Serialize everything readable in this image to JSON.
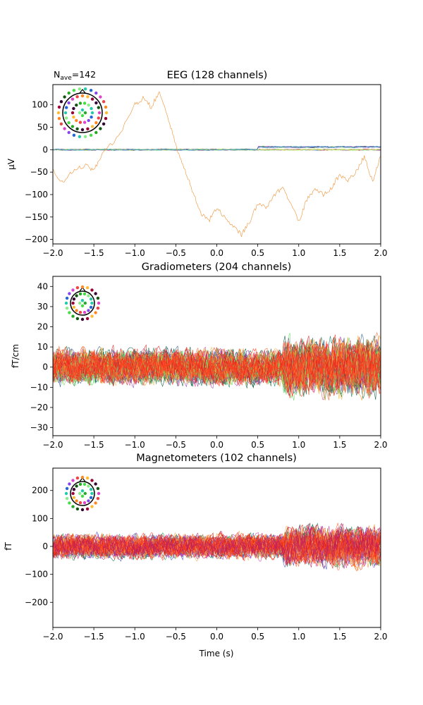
{
  "nave": {
    "prefix": "N",
    "sub": "ave",
    "suffix": "=142"
  },
  "chart_data": [
    {
      "type": "line",
      "title": "EEG (128 channels)",
      "ylabel": "µV",
      "xlabel": "",
      "xlim": [
        -2.0,
        2.0
      ],
      "ylim": [
        -210,
        145
      ],
      "xticks": [
        -2.0,
        -1.5,
        -1.0,
        -0.5,
        0.0,
        0.5,
        1.0,
        1.5,
        2.0
      ],
      "xtick_labels": [
        "−2.0",
        "−1.5",
        "−1.0",
        "−0.5",
        "0.0",
        "0.5",
        "1.0",
        "1.5",
        "2.0"
      ],
      "yticks": [
        100,
        50,
        0,
        -50,
        -100,
        -150,
        -200
      ],
      "ytick_labels": [
        "100",
        "50",
        "0",
        "−50",
        "−100",
        "−150",
        "−200"
      ],
      "noise_amplitude": 3,
      "colors": [
        "#9be564",
        "#7ee04a",
        "#5b8ef0",
        "#c44ad8",
        "#e0407a",
        "#9c2a7a",
        "#333355",
        "#a0e8a0",
        "#d6e85a",
        "#3aa0d8"
      ],
      "outlier": {
        "color": "#f0a050",
        "x": [
          -2.0,
          -1.9,
          -1.8,
          -1.7,
          -1.6,
          -1.5,
          -1.4,
          -1.2,
          -1.0,
          -0.9,
          -0.8,
          -0.7,
          -0.6,
          -0.5,
          -0.4,
          -0.3,
          -0.2,
          -0.1,
          0.0,
          0.1,
          0.2,
          0.3,
          0.4,
          0.5,
          0.6,
          0.7,
          0.8,
          0.9,
          1.0,
          1.1,
          1.2,
          1.3,
          1.4,
          1.5,
          1.6,
          1.7,
          1.8,
          1.9,
          2.0
        ],
        "y": [
          -45,
          -75,
          -55,
          -40,
          -35,
          -45,
          -10,
          30,
          100,
          115,
          95,
          130,
          75,
          10,
          -40,
          -90,
          -140,
          -160,
          -130,
          -150,
          -170,
          -190,
          -160,
          -120,
          -130,
          -100,
          -85,
          -120,
          -160,
          -110,
          -90,
          -100,
          -85,
          -55,
          -70,
          -50,
          -15,
          -70,
          -15
        ]
      }
    },
    {
      "type": "line",
      "title": "Gradiometers (204 channels)",
      "ylabel": "fT/cm",
      "xlabel": "",
      "xlim": [
        -2.0,
        2.0
      ],
      "ylim": [
        -34,
        45
      ],
      "xticks": [
        -2.0,
        -1.5,
        -1.0,
        -0.5,
        0.0,
        0.5,
        1.0,
        1.5,
        2.0
      ],
      "xtick_labels": [
        "−2.0",
        "−1.5",
        "−1.0",
        "−0.5",
        "0.0",
        "0.5",
        "1.0",
        "1.5",
        "2.0"
      ],
      "yticks": [
        40,
        30,
        20,
        10,
        0,
        -10,
        -20,
        -30
      ],
      "ytick_labels": [
        "40",
        "30",
        "20",
        "10",
        "0",
        "−10",
        "−20",
        "−30"
      ],
      "noise_amplitude": 9,
      "colors": [
        "#2a7a4a",
        "#118060",
        "#0a5a40",
        "#2a5a8a",
        "#e0508a",
        "#a040c0",
        "#f0a030",
        "#f5c040",
        "#60e060",
        "#ff6030",
        "#e02020",
        "#ff4020"
      ]
    },
    {
      "type": "line",
      "title": "Magnetometers (102 channels)",
      "ylabel": "fT",
      "xlabel": "Time (s)",
      "xlim": [
        -2.0,
        2.0
      ],
      "ylim": [
        -290,
        280
      ],
      "xticks": [
        -2.0,
        -1.5,
        -1.0,
        -0.5,
        0.0,
        0.5,
        1.0,
        1.5,
        2.0
      ],
      "xtick_labels": [
        "−2.0",
        "−1.5",
        "−1.0",
        "−0.5",
        "0.0",
        "0.5",
        "1.0",
        "1.5",
        "2.0"
      ],
      "yticks": [
        200,
        100,
        0,
        -100,
        -200
      ],
      "ytick_labels": [
        "200",
        "100",
        "0",
        "−100",
        "−200"
      ],
      "noise_amplitude": 45,
      "colors": [
        "#11a060",
        "#0a8040",
        "#3a50c0",
        "#a040d0",
        "#d040b0",
        "#f0a030",
        "#f5b050",
        "#ff6030",
        "#e02010",
        "#ff4020",
        "#c02060"
      ]
    }
  ]
}
